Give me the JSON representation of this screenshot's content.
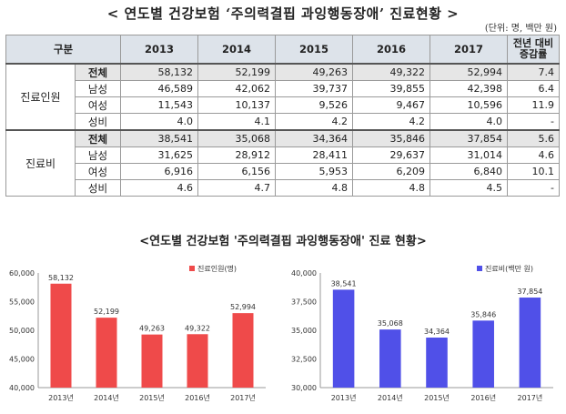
{
  "table_title": "< 연도별 건강보험 ‘주의력결핍 과잉행동장애’ 진료현황 >",
  "unit_note": "(단위: 명, 백만 원)",
  "table": {
    "header": {
      "group": "구분",
      "years": [
        "2013",
        "2014",
        "2015",
        "2016",
        "2017"
      ],
      "change_line1": "전년 대비",
      "change_line2": "증감률"
    },
    "groups": [
      {
        "name": "진료인원",
        "rows": [
          {
            "label": "전체",
            "values": [
              "58,132",
              "52,199",
              "49,263",
              "49,322",
              "52,994"
            ],
            "change": "7.4"
          },
          {
            "label": "남성",
            "values": [
              "46,589",
              "42,062",
              "39,737",
              "39,855",
              "42,398"
            ],
            "change": "6.4"
          },
          {
            "label": "여성",
            "values": [
              "11,543",
              "10,137",
              "9,526",
              "9,467",
              "10,596"
            ],
            "change": "11.9"
          },
          {
            "label": "성비",
            "values": [
              "4.0",
              "4.1",
              "4.2",
              "4.2",
              "4.0"
            ],
            "change": "-"
          }
        ]
      },
      {
        "name": "진료비",
        "rows": [
          {
            "label": "전체",
            "values": [
              "38,541",
              "35,068",
              "34,364",
              "35,846",
              "37,854"
            ],
            "change": "5.6"
          },
          {
            "label": "남성",
            "values": [
              "31,625",
              "28,912",
              "28,411",
              "29,637",
              "31,014"
            ],
            "change": "4.6"
          },
          {
            "label": "여성",
            "values": [
              "6,916",
              "6,156",
              "5,953",
              "6,209",
              "6,840"
            ],
            "change": "10.1"
          },
          {
            "label": "성비",
            "values": [
              "4.6",
              "4.7",
              "4.8",
              "4.8",
              "4.5"
            ],
            "change": "-"
          }
        ]
      }
    ]
  },
  "charts_title": "<연도별 건강보험 '주의력결핍 과잉행동장애' 진료 현황>",
  "chart_data": [
    {
      "type": "bar",
      "categories": [
        "2013년",
        "2014년",
        "2015년",
        "2016년",
        "2017년"
      ],
      "series": [
        {
          "name": "진료인원(명)",
          "values": [
            58132,
            52199,
            49263,
            49322,
            52994
          ]
        }
      ],
      "data_labels": [
        "58,132",
        "52,199",
        "49,263",
        "49,322",
        "52,994"
      ],
      "yticks": [
        "60,000",
        "55,000",
        "50,000",
        "45,000",
        "40,000"
      ],
      "ylim": [
        40000,
        60000
      ],
      "color": "#ef4a4a",
      "legend_position": "top-right"
    },
    {
      "type": "bar",
      "categories": [
        "2013년",
        "2014년",
        "2015년",
        "2016년",
        "2017년"
      ],
      "series": [
        {
          "name": "진료비(백만 원)",
          "values": [
            38541,
            35068,
            34364,
            35846,
            37854
          ]
        }
      ],
      "data_labels": [
        "38,541",
        "35,068",
        "34,364",
        "35,846",
        "37,854"
      ],
      "yticks": [
        "40,000",
        "37,500",
        "35,000",
        "32,500",
        "30,000"
      ],
      "ylim": [
        30000,
        40000
      ],
      "color": "#5050e8",
      "legend_position": "top-right"
    }
  ]
}
